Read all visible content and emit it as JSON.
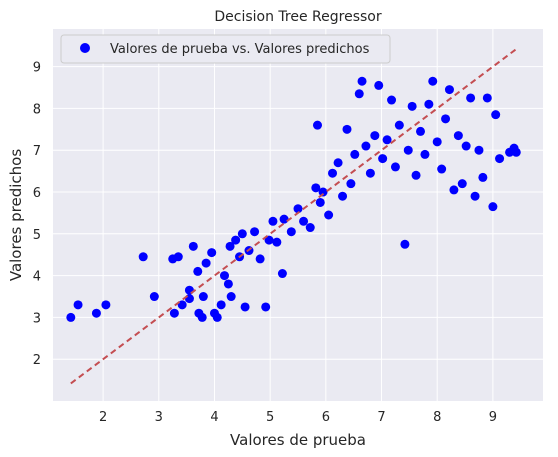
{
  "chart_data": {
    "type": "scatter",
    "title": "Decision Tree Regressor",
    "xlabel": "Valores de prueba",
    "ylabel": "Valores predichos",
    "xlim": [
      1.1,
      9.9
    ],
    "ylim": [
      1.0,
      9.9
    ],
    "xticks": [
      2,
      3,
      4,
      5,
      6,
      7,
      8,
      9
    ],
    "yticks": [
      2,
      3,
      4,
      5,
      6,
      7,
      8,
      9
    ],
    "grid": true,
    "legend_position": "top-left",
    "colors": {
      "background": "#eaeaf2",
      "grid": "#ffffff",
      "points": "#0000ff",
      "reference_line": "#c44e52"
    },
    "series": [
      {
        "name": "Valores de prueba vs. Valores predichos",
        "kind": "scatter",
        "points": [
          [
            1.42,
            3.0
          ],
          [
            1.55,
            3.3
          ],
          [
            1.88,
            3.1
          ],
          [
            2.05,
            3.3
          ],
          [
            2.72,
            4.45
          ],
          [
            2.92,
            3.5
          ],
          [
            3.28,
            3.1
          ],
          [
            3.25,
            4.4
          ],
          [
            3.35,
            4.45
          ],
          [
            3.42,
            3.3
          ],
          [
            3.55,
            3.65
          ],
          [
            3.62,
            4.7
          ],
          [
            3.55,
            3.45
          ],
          [
            3.72,
            3.1
          ],
          [
            3.78,
            3.0
          ],
          [
            3.8,
            3.5
          ],
          [
            3.7,
            4.1
          ],
          [
            3.85,
            4.3
          ],
          [
            3.95,
            4.55
          ],
          [
            4.0,
            3.1
          ],
          [
            4.05,
            3.0
          ],
          [
            4.12,
            3.3
          ],
          [
            4.18,
            4.0
          ],
          [
            4.25,
            3.8
          ],
          [
            4.3,
            3.5
          ],
          [
            4.28,
            4.7
          ],
          [
            4.38,
            4.85
          ],
          [
            4.45,
            4.45
          ],
          [
            4.55,
            3.25
          ],
          [
            4.5,
            5.0
          ],
          [
            4.62,
            4.6
          ],
          [
            4.72,
            5.05
          ],
          [
            4.82,
            4.4
          ],
          [
            4.92,
            3.25
          ],
          [
            4.98,
            4.85
          ],
          [
            5.05,
            5.3
          ],
          [
            5.12,
            4.8
          ],
          [
            5.22,
            4.05
          ],
          [
            5.25,
            5.35
          ],
          [
            5.38,
            5.05
          ],
          [
            5.5,
            5.6
          ],
          [
            5.6,
            5.3
          ],
          [
            5.72,
            5.15
          ],
          [
            5.82,
            6.1
          ],
          [
            5.9,
            5.75
          ],
          [
            5.85,
            7.6
          ],
          [
            5.95,
            6.0
          ],
          [
            6.05,
            5.45
          ],
          [
            6.12,
            6.45
          ],
          [
            6.22,
            6.7
          ],
          [
            6.3,
            5.9
          ],
          [
            6.38,
            7.5
          ],
          [
            6.45,
            6.2
          ],
          [
            6.52,
            6.9
          ],
          [
            6.6,
            8.35
          ],
          [
            6.65,
            8.65
          ],
          [
            6.72,
            7.1
          ],
          [
            6.8,
            6.45
          ],
          [
            6.88,
            7.35
          ],
          [
            6.95,
            8.55
          ],
          [
            7.02,
            6.8
          ],
          [
            7.1,
            7.25
          ],
          [
            7.18,
            8.2
          ],
          [
            7.25,
            6.6
          ],
          [
            7.32,
            7.6
          ],
          [
            7.42,
            4.75
          ],
          [
            7.48,
            7.0
          ],
          [
            7.55,
            8.05
          ],
          [
            7.62,
            6.4
          ],
          [
            7.7,
            7.45
          ],
          [
            7.78,
            6.9
          ],
          [
            7.85,
            8.1
          ],
          [
            7.92,
            8.65
          ],
          [
            8.0,
            7.2
          ],
          [
            8.08,
            6.55
          ],
          [
            8.15,
            7.75
          ],
          [
            8.22,
            8.45
          ],
          [
            8.3,
            6.05
          ],
          [
            8.38,
            7.35
          ],
          [
            8.45,
            6.2
          ],
          [
            8.52,
            7.1
          ],
          [
            8.6,
            8.25
          ],
          [
            8.68,
            5.9
          ],
          [
            8.75,
            7.0
          ],
          [
            8.82,
            6.35
          ],
          [
            8.9,
            8.25
          ],
          [
            9.0,
            5.65
          ],
          [
            9.05,
            7.85
          ],
          [
            9.12,
            6.8
          ],
          [
            9.3,
            6.95
          ],
          [
            9.38,
            7.05
          ],
          [
            9.42,
            6.95
          ]
        ]
      }
    ],
    "reference_line": {
      "style": "dashed",
      "x": [
        1.42,
        9.42
      ],
      "y": [
        1.42,
        9.42
      ]
    }
  }
}
